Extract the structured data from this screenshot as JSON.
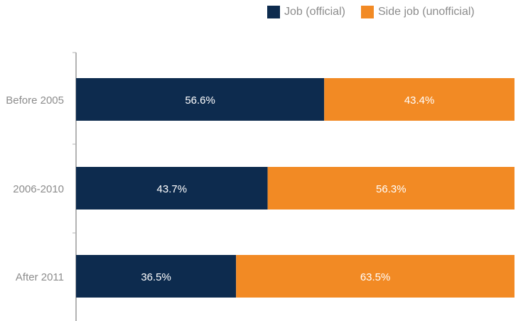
{
  "chart_data": {
    "type": "bar",
    "orientation": "horizontal",
    "stacked": true,
    "percent": true,
    "categories": [
      "Before 2005",
      "2006-2010",
      "After 2011"
    ],
    "series": [
      {
        "name": "Job (official)",
        "color": "#0d2b4e",
        "values": [
          56.6,
          43.7,
          36.5
        ],
        "labels": [
          "56.6%",
          "43.7%",
          "36.5%"
        ]
      },
      {
        "name": "Side job (unofficial)",
        "color": "#f28a24",
        "values": [
          43.4,
          56.3,
          63.5
        ],
        "labels": [
          "43.4%",
          "56.3%",
          "63.5%"
        ]
      }
    ],
    "xlim": [
      0,
      100
    ],
    "grid": false,
    "legend_position": "top-right"
  }
}
